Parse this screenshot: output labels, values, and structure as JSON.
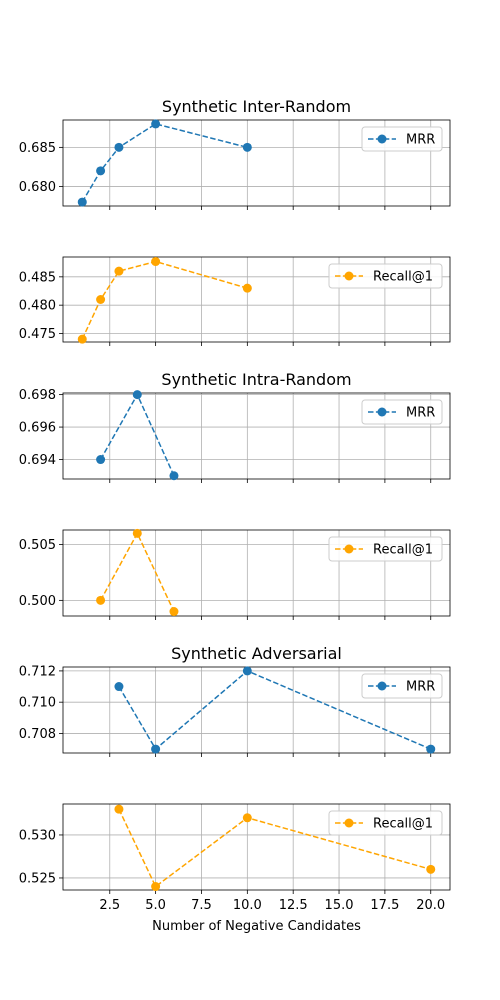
{
  "chart_data": [
    {
      "type": "line",
      "title": "Synthetic Inter-Random",
      "xlabel": "",
      "ylabel": "",
      "series": [
        {
          "name": "MRR",
          "x": [
            1,
            2,
            3,
            5,
            10
          ],
          "values": [
            0.678,
            0.682,
            0.685,
            0.688,
            0.685
          ]
        }
      ],
      "color": "#1f77b4",
      "xlim": [
        -0.05,
        21.05
      ],
      "ylim": [
        0.6775,
        0.6885
      ],
      "yticks": [
        "0.680",
        "0.685"
      ],
      "xticks": [
        2.5,
        5.0,
        7.5,
        10.0,
        12.5,
        15.0,
        17.5,
        20.0
      ],
      "xtick_labels_visible": false,
      "grid": true,
      "legend": "upper right"
    },
    {
      "type": "line",
      "title": "",
      "xlabel": "",
      "ylabel": "",
      "series": [
        {
          "name": "Recall@1",
          "x": [
            1,
            2,
            3,
            5,
            10
          ],
          "values": [
            0.474,
            0.481,
            0.486,
            0.4877,
            0.483
          ]
        }
      ],
      "color": "#ffa500",
      "xlim": [
        -0.05,
        21.05
      ],
      "ylim": [
        0.4735,
        0.4885
      ],
      "yticks": [
        "0.475",
        "0.480",
        "0.485"
      ],
      "xticks": [
        2.5,
        5.0,
        7.5,
        10.0,
        12.5,
        15.0,
        17.5,
        20.0
      ],
      "xtick_labels_visible": false,
      "grid": true,
      "legend": "upper right"
    },
    {
      "type": "line",
      "title": "Synthetic Intra-Random",
      "xlabel": "",
      "ylabel": "",
      "series": [
        {
          "name": "MRR",
          "x": [
            2,
            4,
            6
          ],
          "values": [
            0.694,
            0.698,
            0.693
          ]
        }
      ],
      "color": "#1f77b4",
      "xlim": [
        -0.05,
        21.05
      ],
      "ylim": [
        0.6928,
        0.6981
      ],
      "yticks": [
        "0.694",
        "0.696",
        "0.698"
      ],
      "xticks": [
        2.5,
        5.0,
        7.5,
        10.0,
        12.5,
        15.0,
        17.5,
        20.0
      ],
      "xtick_labels_visible": false,
      "grid": true,
      "legend": "upper right"
    },
    {
      "type": "line",
      "title": "",
      "xlabel": "",
      "ylabel": "",
      "series": [
        {
          "name": "Recall@1",
          "x": [
            2,
            4,
            6
          ],
          "values": [
            0.5,
            0.506,
            0.499
          ]
        }
      ],
      "color": "#ffa500",
      "xlim": [
        -0.05,
        21.05
      ],
      "ylim": [
        0.4986,
        0.5063
      ],
      "yticks": [
        "0.500",
        "0.505"
      ],
      "xticks": [
        2.5,
        5.0,
        7.5,
        10.0,
        12.5,
        15.0,
        17.5,
        20.0
      ],
      "xtick_labels_visible": false,
      "grid": true,
      "legend": "upper right"
    },
    {
      "type": "line",
      "title": "Synthetic Adversarial",
      "xlabel": "",
      "ylabel": "",
      "series": [
        {
          "name": "MRR",
          "x": [
            3,
            5,
            10,
            20
          ],
          "values": [
            0.711,
            0.707,
            0.712,
            0.707
          ]
        }
      ],
      "color": "#1f77b4",
      "xlim": [
        -0.05,
        21.05
      ],
      "ylim": [
        0.70675,
        0.71225
      ],
      "yticks": [
        "0.708",
        "0.710",
        "0.712"
      ],
      "xticks": [
        2.5,
        5.0,
        7.5,
        10.0,
        12.5,
        15.0,
        17.5,
        20.0
      ],
      "xtick_labels_visible": false,
      "grid": true,
      "legend": "upper right"
    },
    {
      "type": "line",
      "title": "",
      "xlabel": "Number of Negative Candidates",
      "ylabel": "",
      "series": [
        {
          "name": "Recall@1",
          "x": [
            3,
            5,
            10,
            20
          ],
          "values": [
            0.533,
            0.524,
            0.532,
            0.526
          ]
        }
      ],
      "color": "#ffa500",
      "xlim": [
        -0.05,
        21.05
      ],
      "ylim": [
        0.5236,
        0.5336
      ],
      "yticks": [
        "0.525",
        "0.530"
      ],
      "xticks": [
        2.5,
        5.0,
        7.5,
        10.0,
        12.5,
        15.0,
        17.5,
        20.0
      ],
      "xtick_labels": [
        "2.5",
        "5.0",
        "7.5",
        "10.0",
        "12.5",
        "15.0",
        "17.5",
        "20.0"
      ],
      "xtick_labels_visible": true,
      "grid": true,
      "legend": "upper right"
    }
  ]
}
